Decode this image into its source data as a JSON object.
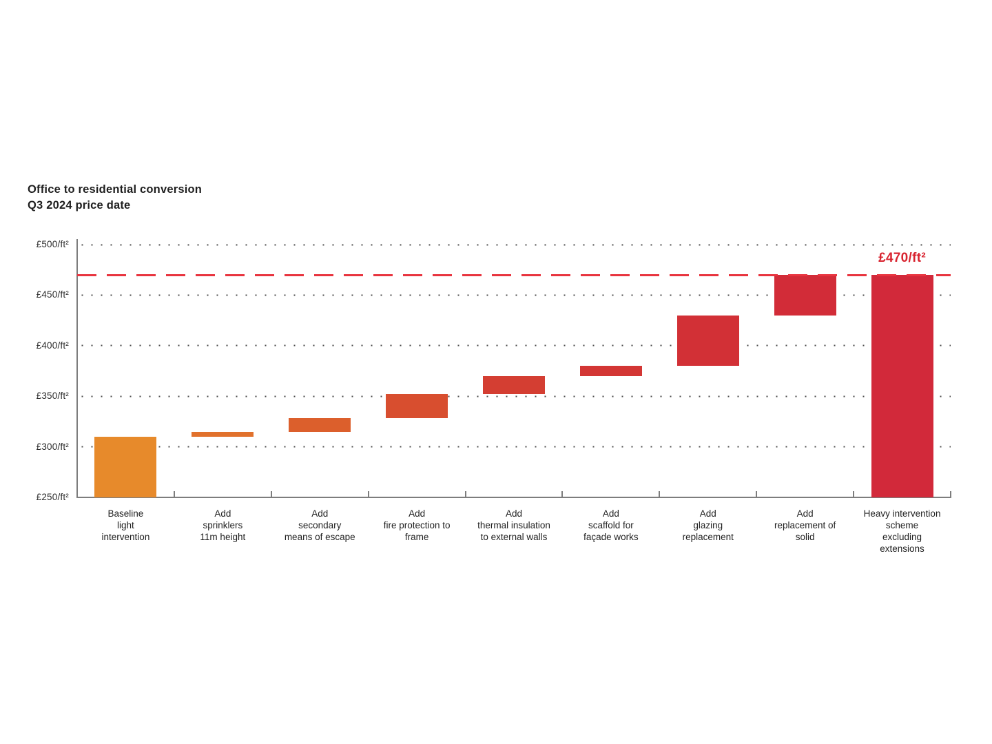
{
  "title": {
    "line1": "Office to residential conversion",
    "line2": "Q3 2024 price date"
  },
  "colors": {
    "title_text": "#1f1f1f",
    "axis": "#7d7d7d",
    "grid_dots": "#4d4d4d",
    "reference_line_red": "#e8343f",
    "reference_label_red": "#d8232f"
  },
  "chart_data": {
    "type": "bar",
    "variant": "waterfall",
    "title": "Office to residential conversion",
    "subtitle": "Q3 2024 price date",
    "y_unit": "£/ft²",
    "ylim": [
      250,
      500
    ],
    "grid": {
      "style": "dotted-horizontal",
      "interval": 50,
      "on": true
    },
    "y_ticks": [
      {
        "value": 250,
        "label": "£250/ft²"
      },
      {
        "value": 300,
        "label": "£300/ft²"
      },
      {
        "value": 350,
        "label": "£350/ft²"
      },
      {
        "value": 400,
        "label": "£400/ft²"
      },
      {
        "value": 450,
        "label": "£450/ft²"
      },
      {
        "value": 500,
        "label": "£500/ft²"
      }
    ],
    "reference_line": {
      "value": 470,
      "label": "£470/ft²",
      "style": "dashed"
    },
    "bars": [
      {
        "category_lines": [
          "Baseline",
          "light",
          "intervention"
        ],
        "from": 250,
        "to": 310,
        "cumulative": 310,
        "step": 310,
        "role": "base",
        "color": "#e78a2b"
      },
      {
        "category_lines": [
          "Add",
          "sprinklers",
          "11m height"
        ],
        "from": 310,
        "to": 315,
        "cumulative": 315,
        "step": 5,
        "role": "increment",
        "color": "#e1712c"
      },
      {
        "category_lines": [
          "Add",
          "secondary",
          "means of escape"
        ],
        "from": 315,
        "to": 328,
        "cumulative": 328,
        "step": 13,
        "role": "increment",
        "color": "#dc5f2c"
      },
      {
        "category_lines": [
          "Add",
          "fire protection to",
          "frame"
        ],
        "from": 328,
        "to": 352,
        "cumulative": 352,
        "step": 24,
        "role": "increment",
        "color": "#d84e2f"
      },
      {
        "category_lines": [
          "Add",
          "thermal insulation",
          "to external walls"
        ],
        "from": 352,
        "to": 370,
        "cumulative": 370,
        "step": 18,
        "role": "increment",
        "color": "#d43e32"
      },
      {
        "category_lines": [
          "Add",
          "scaffold for",
          "façade works"
        ],
        "from": 370,
        "to": 380,
        "cumulative": 380,
        "step": 10,
        "role": "increment",
        "color": "#d33634"
      },
      {
        "category_lines": [
          "Add",
          "glazing",
          "replacement"
        ],
        "from": 380,
        "to": 430,
        "cumulative": 430,
        "step": 50,
        "role": "increment",
        "color": "#d23036"
      },
      {
        "category_lines": [
          "Add",
          "replacement of",
          "solid"
        ],
        "from": 430,
        "to": 470,
        "cumulative": 470,
        "step": 40,
        "role": "increment",
        "color": "#d22c38"
      },
      {
        "category_lines": [
          "Heavy intervention",
          "scheme",
          "excluding",
          "extensions"
        ],
        "from": 250,
        "to": 470,
        "cumulative": 470,
        "step": 470,
        "role": "total",
        "color": "#d2293a"
      }
    ]
  }
}
